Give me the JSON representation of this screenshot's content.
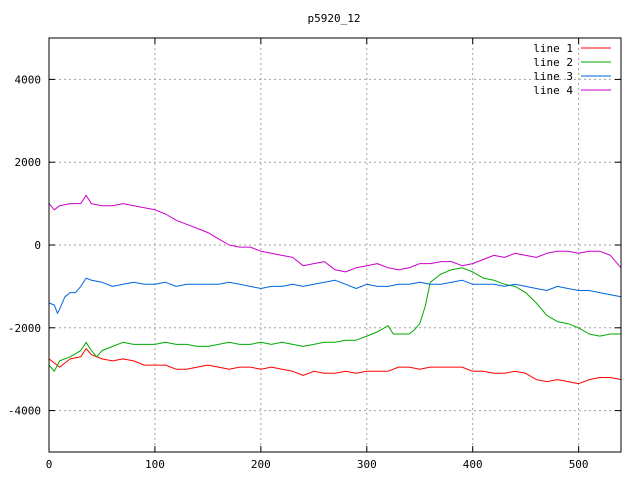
{
  "chart_data": {
    "type": "line",
    "title": "p5920_12",
    "xlabel": "",
    "ylabel": "",
    "xlim": [
      0,
      540
    ],
    "ylim": [
      -5000,
      5000
    ],
    "x_ticks": [
      0,
      100,
      200,
      300,
      400,
      500
    ],
    "y_ticks": [
      -4000,
      -2000,
      0,
      2000,
      4000
    ],
    "grid": true,
    "legend_position": "top-right",
    "series": [
      {
        "name": "line 1",
        "color": "#ff0000",
        "x": [
          0,
          5,
          10,
          20,
          30,
          35,
          40,
          50,
          60,
          70,
          80,
          90,
          100,
          110,
          120,
          130,
          140,
          150,
          160,
          170,
          180,
          190,
          200,
          210,
          220,
          230,
          240,
          250,
          260,
          270,
          280,
          290,
          300,
          310,
          320,
          330,
          340,
          350,
          360,
          370,
          380,
          390,
          400,
          410,
          420,
          430,
          440,
          450,
          460,
          470,
          480,
          490,
          500,
          510,
          520,
          530,
          540
        ],
        "y": [
          -2750,
          -2850,
          -2950,
          -2750,
          -2700,
          -2500,
          -2650,
          -2750,
          -2800,
          -2750,
          -2800,
          -2900,
          -2900,
          -2900,
          -3000,
          -3000,
          -2950,
          -2900,
          -2950,
          -3000,
          -2950,
          -2950,
          -3000,
          -2950,
          -3000,
          -3050,
          -3150,
          -3050,
          -3100,
          -3100,
          -3050,
          -3100,
          -3050,
          -3050,
          -3050,
          -2950,
          -2950,
          -3000,
          -2950,
          -2950,
          -2950,
          -2950,
          -3050,
          -3050,
          -3100,
          -3100,
          -3050,
          -3100,
          -3250,
          -3300,
          -3250,
          -3300,
          -3350,
          -3250,
          -3200,
          -3200,
          -3250
        ]
      },
      {
        "name": "line 2",
        "color": "#00aa00",
        "x": [
          0,
          5,
          10,
          20,
          30,
          35,
          40,
          45,
          50,
          60,
          70,
          80,
          90,
          100,
          110,
          120,
          130,
          140,
          150,
          160,
          170,
          180,
          190,
          200,
          210,
          220,
          230,
          240,
          250,
          260,
          270,
          280,
          290,
          300,
          310,
          320,
          325,
          330,
          340,
          345,
          350,
          355,
          360,
          370,
          380,
          390,
          400,
          410,
          420,
          430,
          440,
          450,
          460,
          470,
          480,
          490,
          500,
          510,
          520,
          530,
          540
        ],
        "y": [
          -2900,
          -3050,
          -2800,
          -2700,
          -2550,
          -2350,
          -2550,
          -2700,
          -2550,
          -2450,
          -2350,
          -2400,
          -2400,
          -2400,
          -2350,
          -2400,
          -2400,
          -2450,
          -2450,
          -2400,
          -2350,
          -2400,
          -2400,
          -2350,
          -2400,
          -2350,
          -2400,
          -2450,
          -2400,
          -2350,
          -2350,
          -2300,
          -2300,
          -2200,
          -2100,
          -1950,
          -2150,
          -2150,
          -2150,
          -2050,
          -1900,
          -1500,
          -900,
          -700,
          -600,
          -550,
          -650,
          -800,
          -850,
          -950,
          -1000,
          -1150,
          -1400,
          -1700,
          -1850,
          -1900,
          -2000,
          -2150,
          -2200,
          -2150,
          -2150
        ]
      },
      {
        "name": "line 3",
        "color": "#0066dd",
        "x": [
          0,
          5,
          8,
          10,
          15,
          20,
          25,
          30,
          35,
          40,
          50,
          60,
          70,
          80,
          90,
          100,
          110,
          120,
          130,
          140,
          150,
          160,
          170,
          180,
          190,
          200,
          210,
          220,
          230,
          240,
          250,
          260,
          270,
          280,
          290,
          300,
          310,
          320,
          330,
          340,
          350,
          360,
          370,
          380,
          390,
          400,
          410,
          420,
          430,
          440,
          450,
          460,
          470,
          480,
          490,
          500,
          510,
          520,
          530,
          540
        ],
        "y": [
          -1400,
          -1450,
          -1650,
          -1550,
          -1250,
          -1150,
          -1150,
          -1000,
          -800,
          -850,
          -900,
          -1000,
          -950,
          -900,
          -950,
          -950,
          -900,
          -1000,
          -950,
          -950,
          -950,
          -950,
          -900,
          -950,
          -1000,
          -1050,
          -1000,
          -1000,
          -950,
          -1000,
          -950,
          -900,
          -850,
          -950,
          -1050,
          -950,
          -1000,
          -1000,
          -950,
          -950,
          -900,
          -950,
          -950,
          -900,
          -850,
          -950,
          -950,
          -950,
          -1000,
          -950,
          -1000,
          -1050,
          -1100,
          -1000,
          -1050,
          -1100,
          -1100,
          -1150,
          -1200,
          -1250
        ]
      },
      {
        "name": "line 4",
        "color": "#cc00cc",
        "x": [
          0,
          5,
          10,
          20,
          30,
          35,
          40,
          50,
          60,
          70,
          80,
          90,
          100,
          110,
          120,
          130,
          140,
          150,
          160,
          170,
          180,
          190,
          200,
          210,
          220,
          230,
          240,
          250,
          260,
          270,
          280,
          290,
          300,
          310,
          320,
          330,
          340,
          350,
          360,
          370,
          380,
          390,
          400,
          410,
          420,
          430,
          440,
          450,
          460,
          470,
          480,
          490,
          500,
          510,
          520,
          530,
          540
        ],
        "y": [
          1000,
          850,
          950,
          1000,
          1000,
          1200,
          1000,
          950,
          950,
          1000,
          950,
          900,
          850,
          750,
          600,
          500,
          400,
          300,
          150,
          0,
          -50,
          -50,
          -150,
          -200,
          -250,
          -300,
          -500,
          -450,
          -400,
          -600,
          -650,
          -550,
          -500,
          -450,
          -550,
          -600,
          -550,
          -450,
          -450,
          -400,
          -400,
          -500,
          -450,
          -350,
          -250,
          -300,
          -200,
          -250,
          -300,
          -200,
          -150,
          -150,
          -200,
          -150,
          -150,
          -250,
          -550
        ]
      }
    ]
  }
}
